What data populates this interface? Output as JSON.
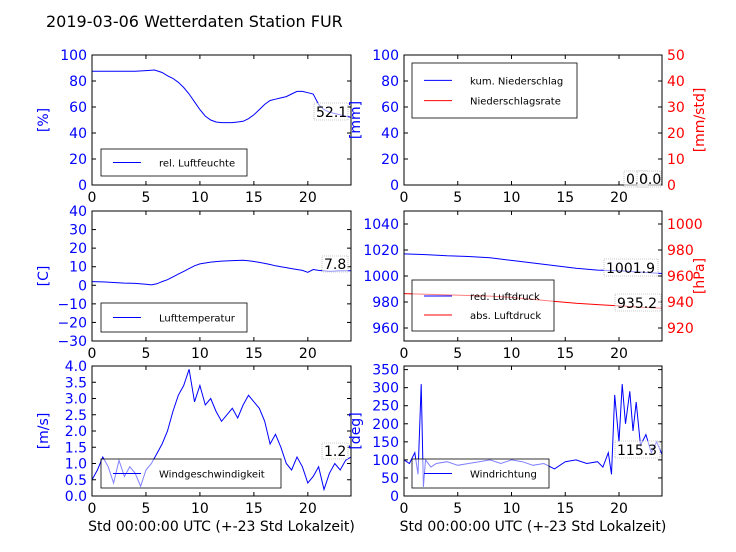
{
  "title": "2019-03-06 Wetterdaten Station FUR\u001f",
  "colors": {
    "left": "#0000ff",
    "right": "#ff0000",
    "axis": "#000000"
  },
  "chart_data": [
    {
      "type": "line",
      "ylabel": "[%]",
      "xlabel": "",
      "xlim": [
        0,
        24
      ],
      "ylim": [
        0,
        100
      ],
      "xticks": [
        "0",
        "5",
        "10",
        "15",
        "20"
      ],
      "yticks": [
        "0",
        "20",
        "40",
        "60",
        "80",
        "100"
      ],
      "value_label": "52.1",
      "legend": {
        "location": "lower-left",
        "entries": [
          "rel. Luftfeuchte"
        ]
      },
      "series": [
        {
          "name": "rel. Luftfeuchte",
          "color": "#0000ff",
          "axis": "left",
          "x": [
            0,
            1,
            2,
            3,
            4,
            5,
            5.8,
            6.5,
            7,
            7.5,
            8,
            8.5,
            9,
            9.5,
            10,
            10.5,
            11,
            11.5,
            12,
            12.5,
            13,
            13.5,
            14,
            14.5,
            15,
            15.5,
            16,
            16.5,
            17,
            17.5,
            18,
            18.5,
            19,
            19.5,
            20,
            20.5,
            21,
            21.5,
            22,
            22.5,
            23,
            23.5,
            24
          ],
          "y": [
            87.5,
            87.5,
            87.5,
            87.5,
            87.5,
            88,
            88.5,
            86.5,
            84,
            82,
            79,
            75,
            70,
            64,
            58,
            53,
            50,
            48.5,
            48,
            48,
            48,
            48.5,
            49,
            51,
            54,
            58,
            62,
            65,
            66,
            67,
            68,
            70,
            72,
            72,
            71,
            70,
            62,
            58,
            56,
            55,
            54,
            53,
            52.1
          ]
        }
      ]
    },
    {
      "type": "line",
      "ylabel": "[mm]",
      "ylabel_right": "[mm/std]",
      "xlabel": "",
      "xlim": [
        0,
        24
      ],
      "ylim": [
        0,
        100
      ],
      "ylim_right": [
        0,
        50
      ],
      "xticks": [
        "0",
        "5",
        "10",
        "15",
        "20"
      ],
      "yticks": [
        "0",
        "20",
        "40",
        "60",
        "80",
        "100"
      ],
      "yticks_right": [
        "0",
        "10",
        "20",
        "30",
        "40",
        "50"
      ],
      "value_label": "0.0",
      "value_label_right": "0.0",
      "legend": {
        "location": "upper-left",
        "entries": [
          "kum. Niederschlag",
          "Niederschlagsrate"
        ]
      },
      "series": [
        {
          "name": "kum. Niederschlag",
          "color": "#0000ff",
          "axis": "left",
          "x": [
            0,
            24
          ],
          "y": [
            0,
            0
          ]
        },
        {
          "name": "Niederschlagsrate",
          "color": "#ff0000",
          "axis": "right",
          "x": [
            0,
            24
          ],
          "y": [
            0,
            0
          ]
        }
      ]
    },
    {
      "type": "line",
      "ylabel": "[C]",
      "xlabel": "",
      "xlim": [
        0,
        24
      ],
      "ylim": [
        -30,
        40
      ],
      "xticks": [
        "0",
        "5",
        "10",
        "15",
        "20"
      ],
      "yticks": [
        "−30",
        "−20",
        "−10",
        "0",
        "10",
        "20",
        "30",
        "40"
      ],
      "value_label": "7.8",
      "legend": {
        "location": "lower-left",
        "entries": [
          "Lufttemperatur"
        ]
      },
      "series": [
        {
          "name": "Lufttemperatur",
          "color": "#0000ff",
          "axis": "left",
          "x": [
            0,
            1,
            2,
            3,
            4,
            5,
            5.5,
            6,
            6.5,
            7,
            7.5,
            8,
            8.5,
            9,
            9.5,
            10,
            10.5,
            11,
            12,
            13,
            14,
            14.5,
            15,
            15.5,
            16,
            16.5,
            17,
            17.5,
            18,
            18.5,
            19,
            19.5,
            20,
            20.5,
            21,
            21.5,
            22,
            23,
            24
          ],
          "y": [
            2,
            1.8,
            1.5,
            1.2,
            1,
            0.6,
            0.2,
            0.8,
            2,
            3,
            4.5,
            6,
            7.5,
            9,
            10.5,
            11.5,
            12,
            12.5,
            13,
            13.3,
            13.5,
            13.2,
            12.8,
            12.3,
            11.8,
            11.2,
            10.5,
            10,
            9.5,
            9,
            8.5,
            8,
            7,
            8.5,
            8,
            7.8,
            7.5,
            7.8,
            7.8
          ]
        }
      ]
    },
    {
      "type": "line",
      "ylabel": "",
      "ylabel_right": "[hPa]",
      "xlabel": "",
      "xlim": [
        0,
        24
      ],
      "ylim": [
        950,
        1050
      ],
      "ylim_right": [
        910,
        1010
      ],
      "xticks": [
        "0",
        "5",
        "10",
        "15",
        "20"
      ],
      "yticks": [
        "960",
        "980",
        "1000",
        "1020",
        "1040"
      ],
      "yticks_right": [
        "920",
        "940",
        "960",
        "980",
        "1000"
      ],
      "value_label": "1001.9",
      "value_label_right": "935.2",
      "legend": {
        "location": "lower-left",
        "entries": [
          "red. Luftdruck",
          "abs. Luftdruck"
        ]
      },
      "series": [
        {
          "name": "red. Luftdruck",
          "color": "#0000ff",
          "axis": "left",
          "x": [
            0,
            2,
            4,
            6,
            8,
            10,
            12,
            14,
            16,
            18,
            20,
            22,
            24
          ],
          "y": [
            1017,
            1016.5,
            1015.5,
            1015,
            1014,
            1012,
            1010,
            1008,
            1006,
            1004.5,
            1004,
            1003,
            1001.9
          ]
        },
        {
          "name": "abs. Luftdruck",
          "color": "#ff0000",
          "axis": "right",
          "x": [
            0,
            2,
            4,
            6,
            8,
            10,
            12,
            14,
            16,
            18,
            20,
            22,
            24
          ],
          "y": [
            946.5,
            946,
            945.5,
            945,
            944.5,
            943.5,
            942,
            940.5,
            939,
            938,
            937,
            936,
            935.2
          ]
        }
      ]
    },
    {
      "type": "line",
      "ylabel": "[m/s]",
      "xlabel": "Std 00:00:00 UTC (+-23 Std Lokalzeit)",
      "xlim": [
        0,
        24
      ],
      "ylim": [
        0,
        4
      ],
      "xticks": [
        "0",
        "5",
        "10",
        "15",
        "20"
      ],
      "yticks": [
        "0.0",
        "0.5",
        "1.0",
        "1.5",
        "2.0",
        "2.5",
        "3.0",
        "3.5",
        "4.0"
      ],
      "value_label": "1.2",
      "legend": {
        "location": "lower-left",
        "entries": [
          "Windgeschwindigkeit"
        ]
      },
      "series": [
        {
          "name": "Windgeschwindigkeit",
          "color": "#0000ff",
          "axis": "left",
          "x": [
            0,
            0.5,
            1,
            1.5,
            2,
            2.5,
            3,
            3.5,
            4,
            4.5,
            5,
            5.5,
            6,
            6.5,
            7,
            7.5,
            8,
            8.5,
            9,
            9.5,
            10,
            10.5,
            11,
            11.5,
            12,
            12.5,
            13,
            13.5,
            14,
            14.5,
            15,
            15.5,
            16,
            16.5,
            17,
            17.5,
            18,
            18.5,
            19,
            19.5,
            20,
            20.5,
            21,
            21.5,
            22,
            22.5,
            23,
            23.5,
            24
          ],
          "y": [
            0.5,
            0.8,
            1.2,
            0.9,
            0.4,
            1.1,
            0.6,
            0.9,
            0.7,
            0.3,
            0.8,
            1.0,
            1.3,
            1.6,
            2.0,
            2.6,
            3.1,
            3.4,
            3.9,
            2.9,
            3.4,
            2.8,
            3.0,
            2.6,
            2.3,
            2.5,
            2.7,
            2.4,
            2.8,
            3.1,
            2.9,
            2.7,
            2.3,
            1.6,
            1.9,
            1.5,
            1.0,
            0.8,
            1.2,
            0.9,
            0.4,
            0.6,
            0.9,
            0.2,
            0.7,
            1.0,
            0.8,
            1.1,
            1.2
          ]
        }
      ]
    },
    {
      "type": "line",
      "ylabel": "[deg]",
      "xlabel": "Std 00:00:00 UTC (+-23 Std Lokalzeit)",
      "xlim": [
        0,
        24
      ],
      "ylim": [
        0,
        360
      ],
      "xticks": [
        "0",
        "5",
        "10",
        "15",
        "20"
      ],
      "yticks": [
        "0",
        "50",
        "100",
        "150",
        "200",
        "250",
        "300",
        "350"
      ],
      "value_label": "115.3",
      "legend": {
        "location": "lower-left",
        "entries": [
          "Windrichtung"
        ]
      },
      "series": [
        {
          "name": "Windrichtung",
          "color": "#0000ff",
          "axis": "left",
          "x": [
            0,
            0.5,
            1,
            1.3,
            1.6,
            1.8,
            2,
            2.5,
            3,
            4,
            5,
            6,
            7,
            8,
            9,
            10,
            11,
            12,
            13,
            14,
            15,
            16,
            17,
            18,
            18.5,
            19,
            19.3,
            19.6,
            20,
            20.3,
            20.6,
            21,
            21.3,
            21.6,
            22,
            22.5,
            23,
            23.5,
            24
          ],
          "y": [
            100,
            90,
            120,
            60,
            310,
            25,
            100,
            80,
            90,
            95,
            85,
            90,
            95,
            100,
            90,
            100,
            95,
            85,
            90,
            75,
            95,
            100,
            90,
            95,
            80,
            120,
            60,
            280,
            150,
            310,
            200,
            290,
            180,
            260,
            140,
            170,
            120,
            150,
            115.3
          ]
        }
      ]
    }
  ]
}
